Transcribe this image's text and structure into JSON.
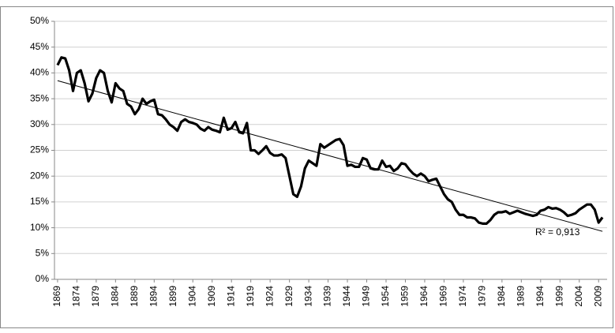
{
  "chart_data": {
    "type": "line",
    "x": [
      1869,
      1870,
      1871,
      1872,
      1873,
      1874,
      1875,
      1876,
      1877,
      1878,
      1879,
      1880,
      1881,
      1882,
      1883,
      1884,
      1885,
      1886,
      1887,
      1888,
      1889,
      1890,
      1891,
      1892,
      1893,
      1894,
      1895,
      1896,
      1897,
      1898,
      1899,
      1900,
      1901,
      1902,
      1903,
      1904,
      1905,
      1906,
      1907,
      1908,
      1909,
      1910,
      1911,
      1912,
      1913,
      1914,
      1915,
      1916,
      1917,
      1918,
      1919,
      1920,
      1921,
      1922,
      1923,
      1924,
      1925,
      1926,
      1927,
      1928,
      1929,
      1930,
      1931,
      1932,
      1933,
      1934,
      1935,
      1936,
      1937,
      1938,
      1939,
      1940,
      1941,
      1942,
      1943,
      1944,
      1945,
      1946,
      1947,
      1948,
      1949,
      1950,
      1951,
      1952,
      1953,
      1954,
      1955,
      1956,
      1957,
      1958,
      1959,
      1960,
      1961,
      1962,
      1963,
      1964,
      1965,
      1966,
      1967,
      1968,
      1969,
      1970,
      1971,
      1972,
      1973,
      1974,
      1975,
      1976,
      1977,
      1978,
      1979,
      1980,
      1981,
      1982,
      1983,
      1984,
      1985,
      1986,
      1987,
      1988,
      1989,
      1990,
      1991,
      1992,
      1993,
      1994,
      1995,
      1996,
      1997,
      1998,
      1999,
      2000,
      2001,
      2002,
      2003,
      2004,
      2005,
      2006,
      2007,
      2008,
      2009,
      2010
    ],
    "values": [
      41.5,
      43,
      42.8,
      40.5,
      36.5,
      40,
      40.5,
      38,
      34.5,
      36,
      39,
      40.5,
      40,
      36.5,
      34.3,
      38,
      37,
      36.5,
      34,
      33.5,
      32,
      33,
      35,
      34,
      34.5,
      34.8,
      32,
      31.8,
      31,
      30,
      29.5,
      28.8,
      30.5,
      31,
      30.5,
      30.3,
      30,
      29.2,
      28.8,
      29.5,
      29,
      28.8,
      28.5,
      31.3,
      29,
      29.3,
      30.5,
      28.5,
      28.3,
      30.3,
      25,
      25,
      24.3,
      25,
      25.8,
      24.5,
      24,
      24,
      24.2,
      23.5,
      20,
      16.5,
      16,
      18,
      21.5,
      23,
      22.5,
      22,
      26.2,
      25.5,
      26,
      26.5,
      27,
      27.2,
      26,
      22,
      22.2,
      21.8,
      21.8,
      23.5,
      23.2,
      21.5,
      21.3,
      21.3,
      23,
      21.8,
      22,
      21,
      21.5,
      22.5,
      22.3,
      21.3,
      20.5,
      20,
      20.5,
      20,
      19,
      19.3,
      19.5,
      18,
      16.5,
      15.5,
      15,
      13.5,
      12.5,
      12.5,
      12,
      12,
      11.8,
      11,
      10.8,
      10.8,
      11.5,
      12.5,
      13,
      13,
      13.2,
      12.7,
      13,
      13.3,
      13,
      12.7,
      12.5,
      12.3,
      12.5,
      13.3,
      13.5,
      14,
      13.7,
      13.8,
      13.5,
      13,
      12.3,
      12.5,
      12.8,
      13.5,
      14,
      14.5,
      14.5,
      13.5,
      11,
      12
    ],
    "color": "#000000",
    "trendline": {
      "x": [
        1869,
        2010
      ],
      "values": [
        38.5,
        9.3
      ],
      "label": "R² = 0,913",
      "color": "#000000"
    },
    "xlim": [
      1868.2,
      2011.2
    ],
    "xticks": [
      1869,
      1874,
      1879,
      1884,
      1889,
      1894,
      1899,
      1904,
      1909,
      1914,
      1919,
      1924,
      1929,
      1934,
      1939,
      1944,
      1949,
      1954,
      1959,
      1964,
      1969,
      1974,
      1979,
      1984,
      1989,
      1994,
      1999,
      2004,
      2009
    ],
    "ylim": [
      0,
      50
    ],
    "yticks": [
      {
        "value": 0,
        "label": "0%"
      },
      {
        "value": 5,
        "label": "5%"
      },
      {
        "value": 10,
        "label": "10%"
      },
      {
        "value": 15,
        "label": "15%"
      },
      {
        "value": 20,
        "label": "20%"
      },
      {
        "value": 25,
        "label": "25%"
      },
      {
        "value": 30,
        "label": "30%"
      },
      {
        "value": 35,
        "label": "35%"
      },
      {
        "value": 40,
        "label": "40%"
      },
      {
        "value": 45,
        "label": "45%"
      },
      {
        "value": 50,
        "label": "50%"
      }
    ],
    "grid": true
  }
}
